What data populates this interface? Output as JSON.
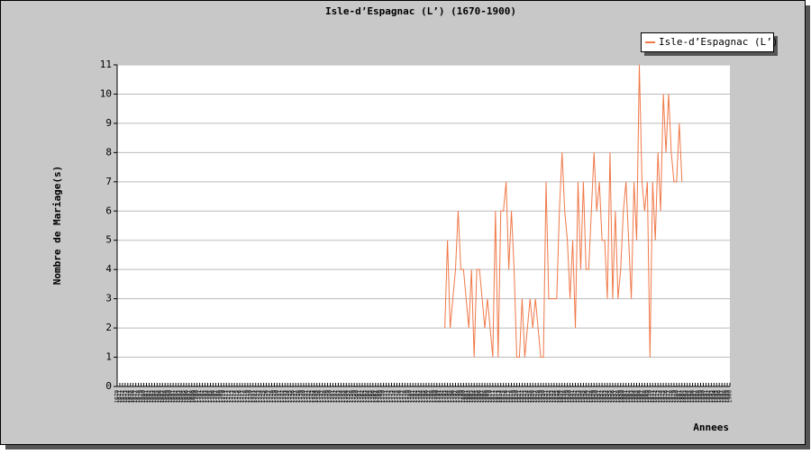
{
  "chart_data": {
    "type": "line",
    "title": "Isle-d’Espagnac (L’) (1670-1900)",
    "y_label": "Nombre de Mariage(s)",
    "x_label": "Annees",
    "legend": "top-right",
    "grid": true,
    "ylim": [
      0,
      11
    ],
    "yticks": [
      0,
      1,
      2,
      3,
      4,
      5,
      6,
      7,
      8,
      9,
      10,
      11
    ],
    "xlim": [
      1670,
      1900
    ],
    "xticks": [
      1670,
      1671,
      1672,
      1673,
      1674,
      1675,
      1676,
      1677,
      1678,
      1679,
      1680,
      1681,
      1682,
      1683,
      1684,
      1685,
      1686,
      1687,
      1688,
      1689,
      1690,
      1691,
      1692,
      1693,
      1694,
      1695,
      1696,
      1697,
      1698,
      1699,
      1700,
      1701,
      1702,
      1703,
      1704,
      1705,
      1706,
      1707,
      1708,
      1709,
      1710,
      1711,
      1712,
      1713,
      1714,
      1715,
      1716,
      1717,
      1718,
      1719,
      1720,
      1721,
      1722,
      1723,
      1724,
      1725,
      1726,
      1727,
      1728,
      1729,
      1730,
      1731,
      1732,
      1733,
      1734,
      1735,
      1736,
      1737,
      1738,
      1739,
      1740,
      1741,
      1742,
      1743,
      1744,
      1745,
      1746,
      1747,
      1748,
      1749,
      1750,
      1751,
      1752,
      1753,
      1754,
      1755,
      1756,
      1757,
      1758,
      1759,
      1760,
      1761,
      1762,
      1763,
      1764,
      1765,
      1766,
      1767,
      1768,
      1769,
      1770,
      1771,
      1772,
      1773,
      1774,
      1775,
      1776,
      1777,
      1778,
      1779,
      1780,
      1781,
      1782,
      1783,
      1784,
      1785,
      1786,
      1787,
      1788,
      1789,
      1790,
      1791,
      1792,
      1793,
      1794,
      1795,
      1796,
      1797,
      1798,
      1799,
      1800,
      1801,
      1802,
      1803,
      1804,
      1805,
      1806,
      1807,
      1808,
      1809,
      1810,
      1811,
      1812,
      1813,
      1814,
      1815,
      1816,
      1817,
      1818,
      1819,
      1820,
      1821,
      1822,
      1823,
      1824,
      1825,
      1826,
      1827,
      1828,
      1829,
      1830,
      1831,
      1832,
      1833,
      1834,
      1835,
      1836,
      1837,
      1838,
      1839,
      1840,
      1841,
      1842,
      1843,
      1844,
      1845,
      1846,
      1847,
      1848,
      1849,
      1850,
      1851,
      1852,
      1853,
      1854,
      1855,
      1856,
      1857,
      1858,
      1859,
      1860,
      1861,
      1862,
      1863,
      1864,
      1865,
      1866,
      1867,
      1868,
      1869,
      1870,
      1871,
      1872,
      1873,
      1874,
      1875,
      1876,
      1877,
      1878,
      1879,
      1880,
      1881,
      1882,
      1883,
      1884,
      1885,
      1886,
      1887,
      1888,
      1889,
      1890,
      1891,
      1892,
      1893,
      1894,
      1895,
      1896,
      1897,
      1898,
      1899,
      1900
    ],
    "x": [
      1793,
      1794,
      1795,
      1796,
      1797,
      1798,
      1799,
      1800,
      1801,
      1802,
      1803,
      1804,
      1805,
      1806,
      1807,
      1808,
      1809,
      1810,
      1811,
      1812,
      1813,
      1814,
      1815,
      1816,
      1817,
      1818,
      1819,
      1820,
      1821,
      1822,
      1823,
      1824,
      1825,
      1826,
      1827,
      1828,
      1829,
      1830,
      1831,
      1832,
      1833,
      1834,
      1835,
      1836,
      1837,
      1838,
      1839,
      1840,
      1841,
      1842,
      1843,
      1844,
      1845,
      1846,
      1847,
      1848,
      1849,
      1850,
      1851,
      1852,
      1853,
      1854,
      1855,
      1856,
      1857,
      1858,
      1859,
      1860,
      1861,
      1862,
      1863,
      1864,
      1865,
      1866,
      1867,
      1868,
      1869,
      1870,
      1871,
      1872,
      1873,
      1874,
      1875,
      1876,
      1877,
      1878,
      1879,
      1880,
      1881,
      1882
    ],
    "series": [
      {
        "name": "Isle-d’Espagnac (L’)",
        "color": "#f07848",
        "values": [
          2,
          5,
          2,
          3,
          4,
          6,
          4,
          4,
          3,
          2,
          4,
          1,
          4,
          4,
          3,
          2,
          3,
          2,
          1,
          6,
          1,
          6,
          6,
          7,
          4,
          6,
          4,
          1,
          1,
          3,
          1,
          2,
          3,
          2,
          3,
          2,
          1,
          1,
          7,
          3,
          3,
          3,
          3,
          6,
          8,
          6,
          5,
          3,
          5,
          2,
          7,
          4,
          7,
          4,
          4,
          6,
          8,
          6,
          7,
          5,
          5,
          3,
          8,
          3,
          6,
          3,
          4,
          6,
          7,
          5,
          3,
          7,
          5,
          11,
          7,
          6,
          7,
          1,
          7,
          5,
          8,
          6,
          10,
          8,
          10,
          8,
          7,
          7,
          9,
          7
        ]
      }
    ]
  }
}
